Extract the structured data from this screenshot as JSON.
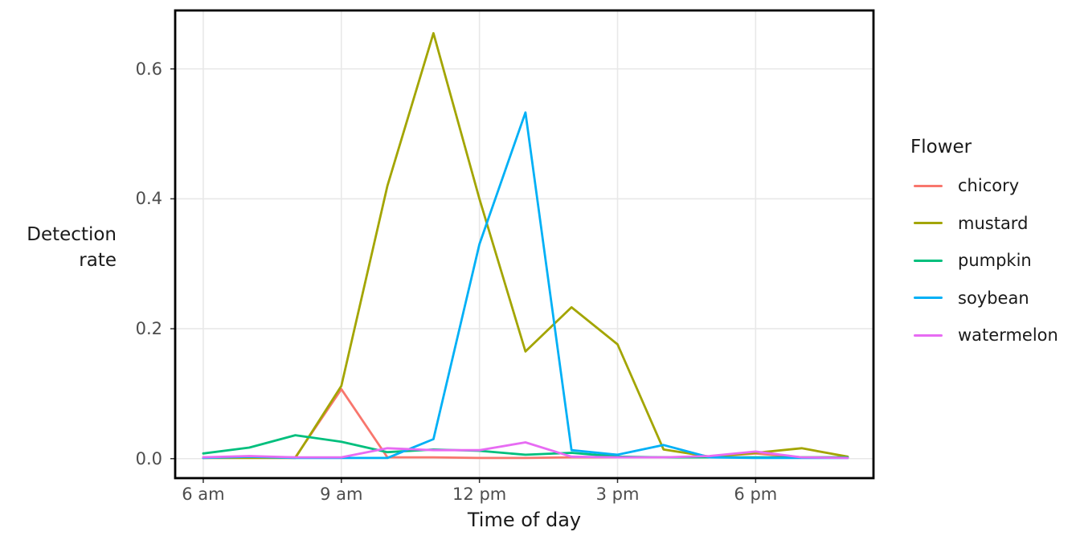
{
  "figure": {
    "y_axis_title_line1": "Detection",
    "y_axis_title_line2": "rate",
    "x_axis_title": "Time of day",
    "legend_title": "Flower"
  },
  "chart_data": {
    "type": "line",
    "title": "",
    "xlabel": "Time of day",
    "ylabel": "Detection rate",
    "legend_title": "Flower",
    "legend_position": "right",
    "grid": "major-only",
    "x_hours": [
      6,
      7,
      8,
      9,
      10,
      11,
      12,
      13,
      14,
      15,
      16,
      17,
      18,
      19,
      20
    ],
    "x_tick_hours": [
      6,
      9,
      12,
      15,
      18
    ],
    "x_tick_labels": [
      "6 am",
      "9 am",
      "12 pm",
      "3 pm",
      "6 pm"
    ],
    "y_ticks": [
      0.0,
      0.2,
      0.4,
      0.6
    ],
    "y_tick_labels": [
      "0.0",
      "0.2",
      "0.4",
      "0.6"
    ],
    "xlim": [
      5.39,
      20.56
    ],
    "ylim": [
      -0.03,
      0.69
    ],
    "series": [
      {
        "name": "chicory",
        "color": "#F8766D",
        "values": [
          0.002,
          0.002,
          0.002,
          0.107,
          0.002,
          0.002,
          0.001,
          0.001,
          0.002,
          0.002,
          0.002,
          0.003,
          0.008,
          0.002,
          0.002
        ]
      },
      {
        "name": "mustard",
        "color": "#A3A500",
        "values": [
          0.001,
          0.001,
          0.001,
          0.112,
          0.42,
          0.655,
          0.4,
          0.165,
          0.233,
          0.176,
          0.014,
          0.003,
          0.009,
          0.016,
          0.003
        ]
      },
      {
        "name": "pumpkin",
        "color": "#00BF7D",
        "values": [
          0.008,
          0.017,
          0.036,
          0.026,
          0.01,
          0.014,
          0.012,
          0.006,
          0.009,
          0.003,
          0.002,
          0.002,
          0.002,
          0.002,
          0.002
        ]
      },
      {
        "name": "soybean",
        "color": "#00B0F6",
        "values": [
          0.001,
          0.003,
          0.001,
          0.001,
          0.001,
          0.03,
          0.33,
          0.533,
          0.013,
          0.006,
          0.021,
          0.002,
          0.001,
          0.001,
          0.001
        ]
      },
      {
        "name": "watermelon",
        "color": "#E76BF3",
        "values": [
          0.002,
          0.004,
          0.002,
          0.002,
          0.016,
          0.013,
          0.013,
          0.025,
          0.003,
          0.002,
          0.002,
          0.004,
          0.011,
          0.002,
          0.001
        ]
      }
    ]
  },
  "colors": {
    "background": "#FFFFFF",
    "panel_border": "#000000",
    "gridline": "#E8E8E8",
    "tick_mark": "#333333",
    "tick_label": "#4D4D4D",
    "axis_title": "#1A1A1A"
  }
}
